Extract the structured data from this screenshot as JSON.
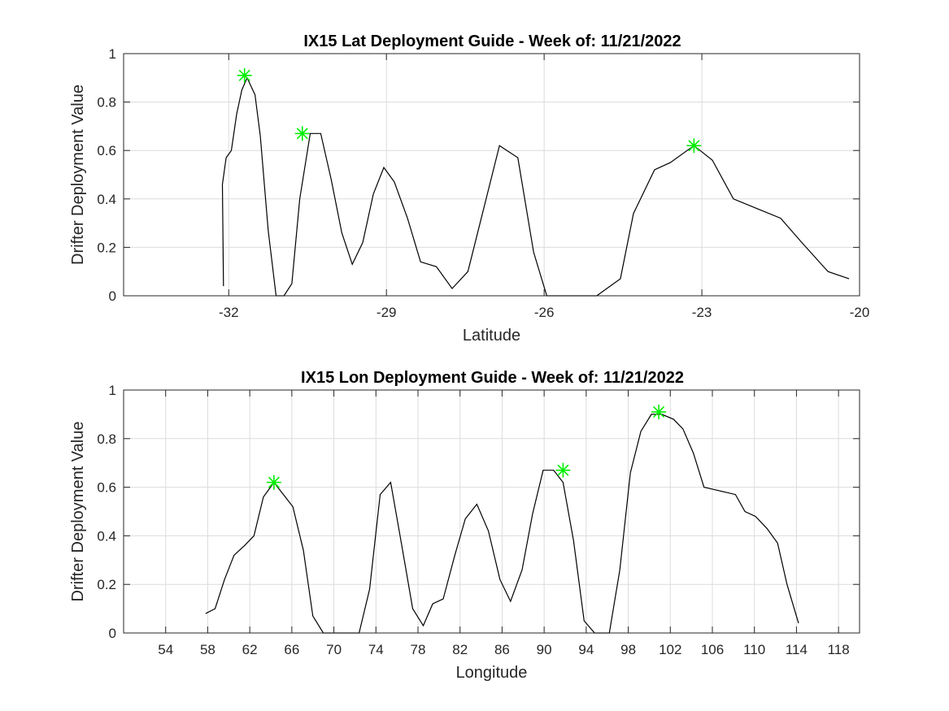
{
  "chart_data": [
    {
      "type": "line",
      "title": "IX15 Lat Deployment Guide - Week of: 11/21/2022",
      "xlabel": "Latitude",
      "ylabel": "Drifter Deployment Value",
      "xlim": [
        -34.0,
        -20.0
      ],
      "ylim": [
        0,
        1
      ],
      "xticks": [
        -32,
        -29,
        -26,
        -23,
        -20
      ],
      "xtick_labels": [
        "-32",
        "-29",
        "-26",
        "-23",
        "-20"
      ],
      "yticks": [
        0,
        0.2,
        0.4,
        0.6,
        0.8,
        1
      ],
      "ytick_labels": [
        "0",
        "0.2",
        "0.4",
        "0.6",
        "0.8",
        "1"
      ],
      "grid": true,
      "line_color": "#000000",
      "marker_color": "#00ee00",
      "x": [
        -32.1,
        -32.12,
        -32.05,
        -31.95,
        -31.85,
        -31.75,
        -31.65,
        -31.5,
        -31.4,
        -31.25,
        -31.1,
        -30.95,
        -30.8,
        -30.65,
        -30.45,
        -30.25,
        -30.05,
        -29.85,
        -29.65,
        -29.45,
        -29.25,
        -29.05,
        -28.85,
        -28.6,
        -28.35,
        -28.05,
        -27.75,
        -27.45,
        -27.15,
        -26.85,
        -26.5,
        -26.2,
        -25.95,
        -25.0,
        -24.55,
        -24.3,
        -23.9,
        -23.6,
        -23.15,
        -22.8,
        -22.4,
        -21.95,
        -21.5,
        -21.1,
        -20.6,
        -20.2
      ],
      "y": [
        0.04,
        0.46,
        0.57,
        0.6,
        0.75,
        0.85,
        0.9,
        0.83,
        0.66,
        0.27,
        0.0,
        0.0,
        0.05,
        0.4,
        0.67,
        0.67,
        0.48,
        0.26,
        0.13,
        0.22,
        0.42,
        0.53,
        0.47,
        0.32,
        0.14,
        0.12,
        0.03,
        0.1,
        0.36,
        0.62,
        0.57,
        0.18,
        0.0,
        0.0,
        0.07,
        0.34,
        0.52,
        0.55,
        0.62,
        0.56,
        0.4,
        0.36,
        0.32,
        0.22,
        0.1,
        0.07
      ],
      "markers": [
        {
          "x": -31.7,
          "y": 0.91
        },
        {
          "x": -30.6,
          "y": 0.67
        },
        {
          "x": -23.15,
          "y": 0.62
        }
      ]
    },
    {
      "type": "line",
      "title": "IX15 Lon Deployment Guide - Week of: 11/21/2022",
      "xlabel": "Longitude",
      "ylabel": "Drifter Deployment Value",
      "xlim": [
        50,
        120
      ],
      "ylim": [
        0,
        1
      ],
      "xticks": [
        54,
        58,
        62,
        66,
        70,
        74,
        78,
        82,
        86,
        90,
        94,
        98,
        102,
        106,
        110,
        114,
        118
      ],
      "xtick_labels": [
        "54",
        "58",
        "62",
        "66",
        "70",
        "74",
        "78",
        "82",
        "86",
        "90",
        "94",
        "98",
        "102",
        "106",
        "110",
        "114",
        "118"
      ],
      "yticks": [
        0,
        0.2,
        0.4,
        0.6,
        0.8,
        1
      ],
      "ytick_labels": [
        "0",
        "0.2",
        "0.4",
        "0.6",
        "0.8",
        "1"
      ],
      "grid": true,
      "line_color": "#000000",
      "marker_color": "#00ee00",
      "x": [
        57.8,
        58.7,
        59.6,
        60.5,
        61.5,
        62.4,
        63.3,
        64.3,
        65.2,
        66.1,
        67.1,
        68.0,
        69.0,
        70.0,
        72.4,
        73.4,
        74.4,
        75.4,
        76.5,
        77.5,
        78.5,
        79.4,
        80.4,
        81.5,
        82.5,
        83.6,
        84.7,
        85.8,
        86.8,
        87.9,
        88.9,
        89.9,
        90.9,
        91.8,
        92.8,
        93.8,
        94.8,
        96.2,
        97.2,
        98.2,
        99.2,
        100.2,
        101.2,
        102.3,
        103.2,
        104.2,
        105.2,
        106.2,
        107.2,
        108.2,
        109.1,
        110.1,
        111.2,
        112.2,
        113.1,
        114.2
      ],
      "y": [
        0.08,
        0.1,
        0.22,
        0.32,
        0.36,
        0.4,
        0.56,
        0.62,
        0.57,
        0.52,
        0.34,
        0.07,
        0.0,
        0.0,
        0.0,
        0.18,
        0.57,
        0.62,
        0.35,
        0.1,
        0.03,
        0.12,
        0.14,
        0.32,
        0.47,
        0.53,
        0.42,
        0.22,
        0.13,
        0.26,
        0.49,
        0.67,
        0.67,
        0.62,
        0.38,
        0.05,
        0.0,
        0.0,
        0.26,
        0.66,
        0.83,
        0.9,
        0.9,
        0.88,
        0.84,
        0.74,
        0.6,
        0.59,
        0.58,
        0.57,
        0.5,
        0.48,
        0.43,
        0.37,
        0.2,
        0.04
      ],
      "markers": [
        {
          "x": 64.3,
          "y": 0.62
        },
        {
          "x": 91.8,
          "y": 0.67
        },
        {
          "x": 100.9,
          "y": 0.91
        }
      ]
    }
  ]
}
